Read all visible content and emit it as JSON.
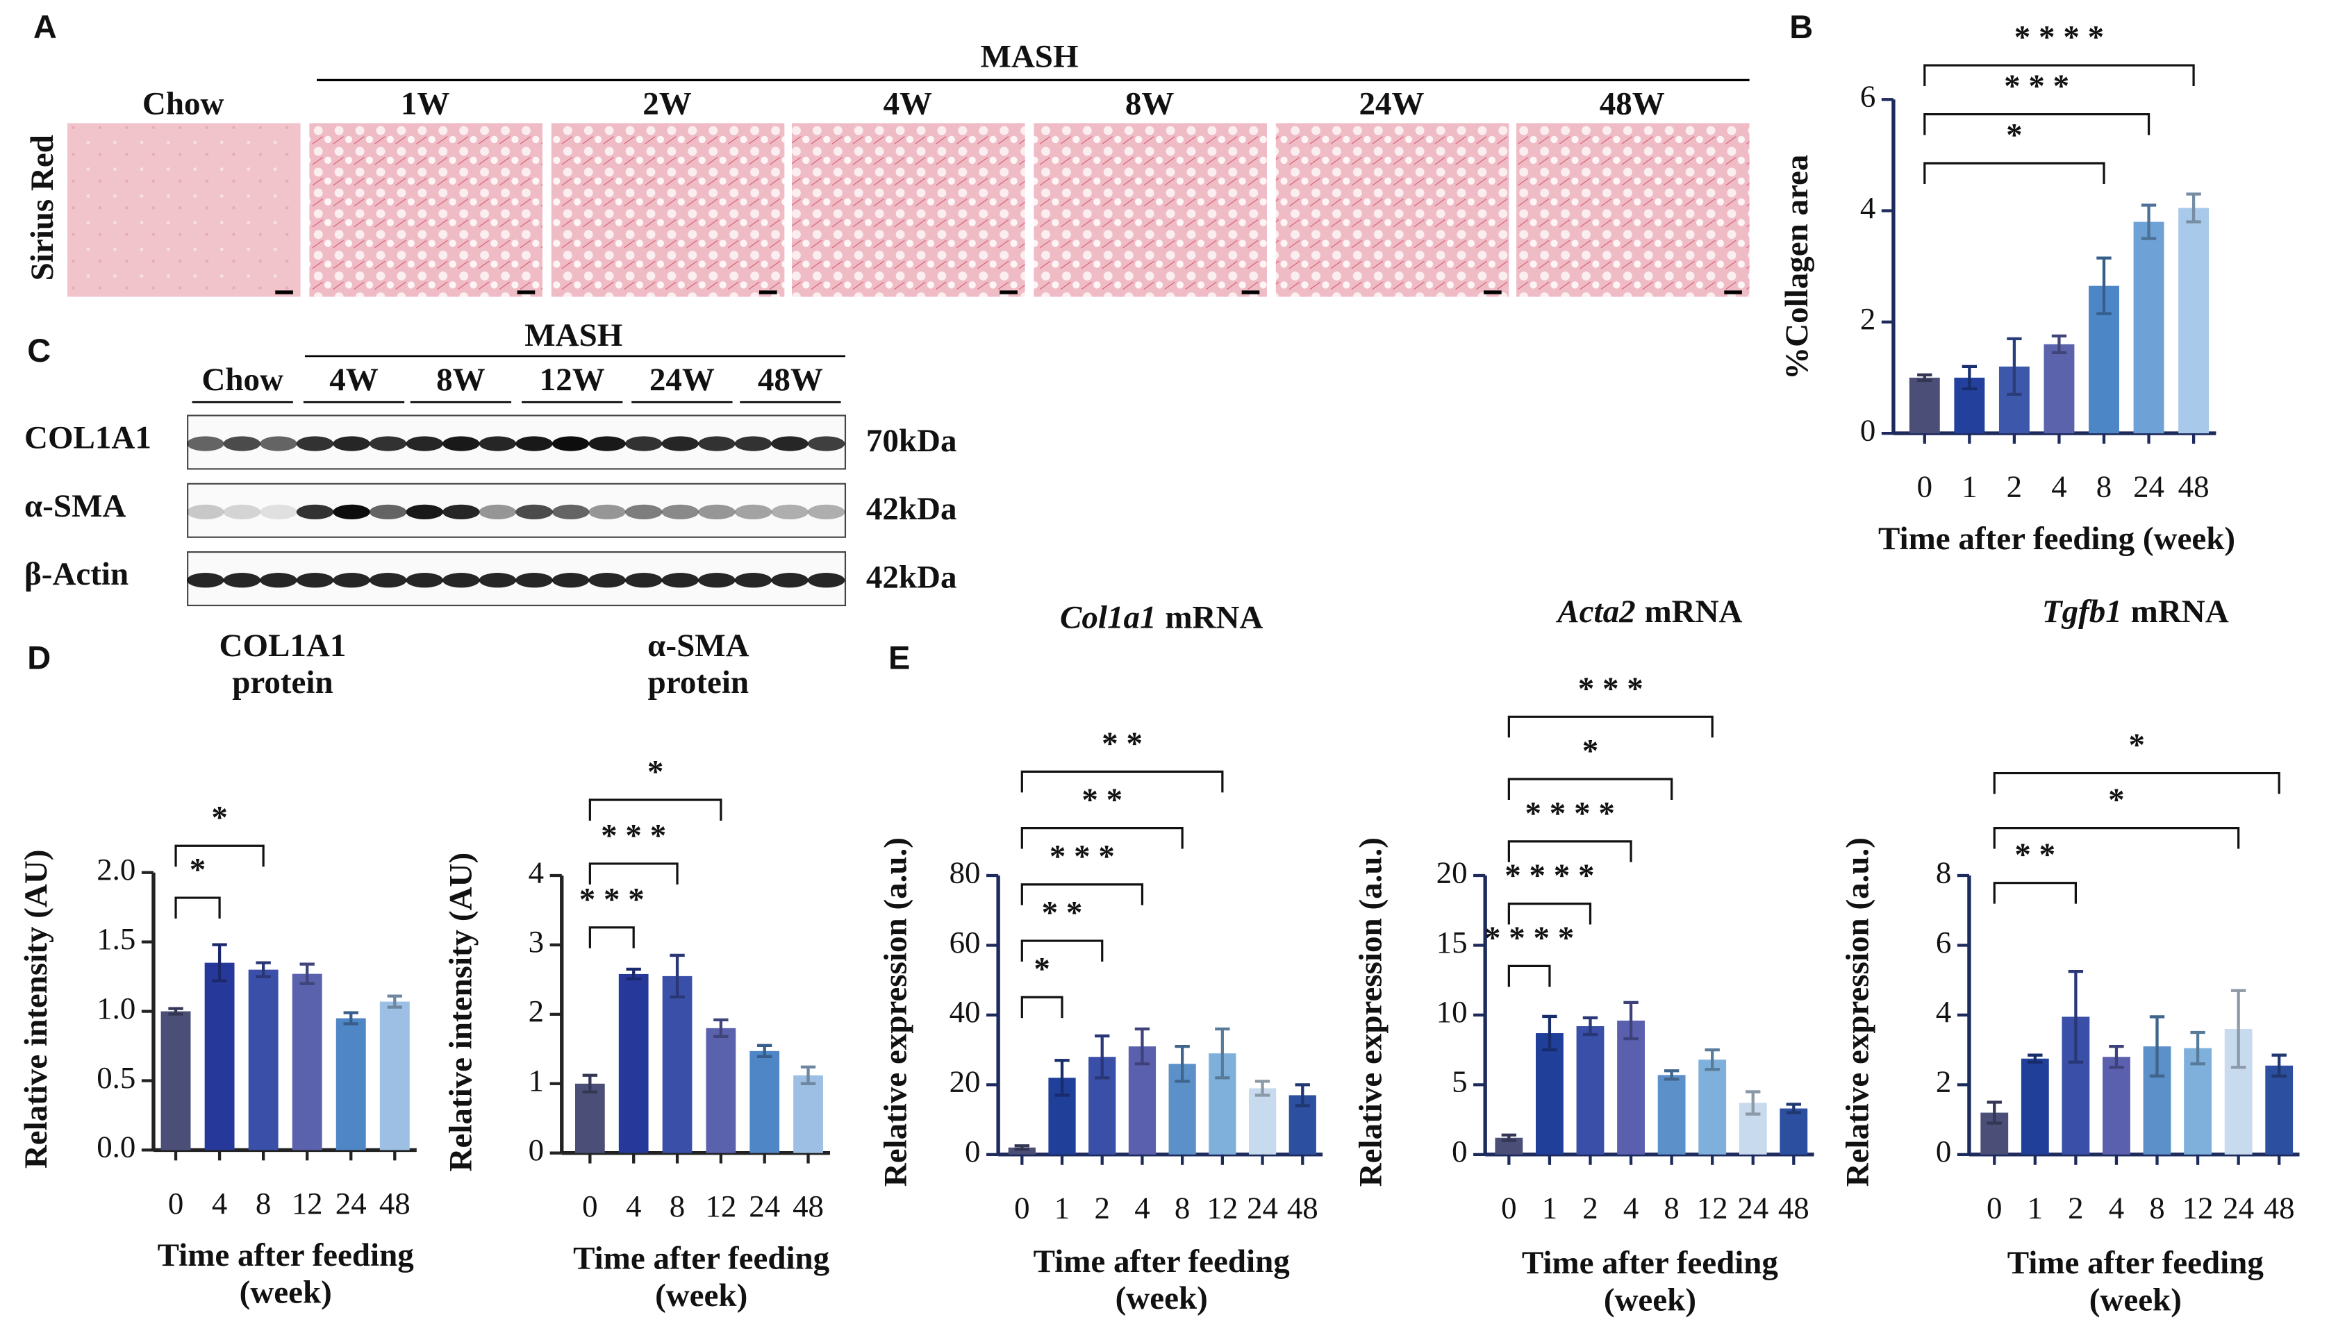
{
  "panels": [
    "A",
    "B",
    "C",
    "D",
    "E"
  ],
  "histology": {
    "mash_label": "MASH",
    "row_label": "Sirius Red",
    "columns": [
      "Chow",
      "1W",
      "2W",
      "4W",
      "8W",
      "24W",
      "48W"
    ]
  },
  "blot": {
    "mash_label": "MASH",
    "groups": [
      "Chow",
      "4W",
      "8W",
      "12W",
      "24W",
      "48W"
    ],
    "rows": [
      {
        "name": "COL1A1",
        "size": "70kDa"
      },
      {
        "name": "α-SMA",
        "size": "42kDa"
      },
      {
        "name": "β-Actin",
        "size": "42kDa"
      }
    ]
  },
  "chart_data": [
    {
      "type": "bar",
      "y_label": "%Collagen area",
      "x_label": "Time after feeding (week)",
      "categories": [
        "0",
        "1",
        "2",
        "4",
        "8",
        "24",
        "48"
      ],
      "values": [
        1.0,
        1.0,
        1.2,
        1.6,
        2.65,
        3.8,
        4.05
      ],
      "errors": [
        0.05,
        0.2,
        0.5,
        0.15,
        0.5,
        0.3,
        0.25
      ],
      "colors": [
        "#4b4f78",
        "#23409c",
        "#3d57ab",
        "#5b63ad",
        "#4d86c6",
        "#6ea1d6",
        "#a9c9ea"
      ],
      "ylim": [
        0,
        6
      ],
      "yticks": [
        0,
        2,
        4,
        6
      ],
      "comparisons": [
        {
          "vs": "8",
          "label": "*"
        },
        {
          "vs": "24",
          "label": "* * *"
        },
        {
          "vs": "48",
          "label": "* * * *"
        }
      ]
    },
    {
      "type": "bar",
      "title": [
        "COL1A1",
        "protein"
      ],
      "y_label": "Relative intensity (AU)",
      "x_label": [
        "Time after feeding",
        "(week)"
      ],
      "categories": [
        "0",
        "4",
        "8",
        "12",
        "24",
        "48"
      ],
      "values": [
        1.0,
        1.35,
        1.3,
        1.27,
        0.95,
        1.07
      ],
      "errors": [
        0.02,
        0.13,
        0.05,
        0.07,
        0.04,
        0.04
      ],
      "colors": [
        "#4b4f78",
        "#26399a",
        "#3a4fa8",
        "#5a62ad",
        "#4f86c6",
        "#9dbfe3"
      ],
      "ylim": [
        0,
        2
      ],
      "yticks": [
        {
          "value": 0,
          "label": "0.0"
        },
        0.5,
        {
          "value": 1,
          "label": "1.0"
        },
        1.5,
        {
          "value": 2,
          "label": "2.0"
        }
      ],
      "comparisons": [
        {
          "vs": "4",
          "label": "*"
        },
        {
          "vs": "8",
          "label": "*"
        }
      ]
    },
    {
      "type": "bar",
      "title": [
        "α-SMA",
        "protein"
      ],
      "y_label": "Relative intensity (AU)",
      "x_label": [
        "Time after feeding",
        "(week)"
      ],
      "categories": [
        "0",
        "4",
        "8",
        "12",
        "24",
        "48"
      ],
      "values": [
        1.0,
        2.58,
        2.55,
        1.8,
        1.47,
        1.12
      ],
      "errors": [
        0.12,
        0.07,
        0.3,
        0.12,
        0.08,
        0.12
      ],
      "colors": [
        "#4b4f78",
        "#26399a",
        "#3a4fa8",
        "#5a62ad",
        "#4f86c6",
        "#9dbfe3"
      ],
      "ylim": [
        0,
        4
      ],
      "yticks": [
        0,
        1,
        2,
        3,
        4
      ],
      "comparisons": [
        {
          "vs": "4",
          "label": "* * *"
        },
        {
          "vs": "8",
          "label": "* * *"
        },
        {
          "vs": "12",
          "label": "*"
        }
      ]
    },
    {
      "type": "bar",
      "title_italic": "Col1a1",
      "title": "mRNA",
      "y_label": "Relative expression (a.u.)",
      "x_label": [
        "Time after feeding",
        "(week)"
      ],
      "categories": [
        "0",
        "1",
        "2",
        "4",
        "8",
        "12",
        "24",
        "48"
      ],
      "values": [
        2,
        22,
        28,
        31,
        26,
        29,
        19,
        17
      ],
      "errors": [
        0.5,
        5,
        6,
        5,
        5,
        7,
        2,
        3
      ],
      "colors": [
        "#4b4f78",
        "#1f3f99",
        "#3a4fa8",
        "#5a5fae",
        "#5b90c9",
        "#7fb0dc",
        "#c8daee",
        "#2d4fa0"
      ],
      "ylim": [
        0,
        80
      ],
      "yticks": [
        0,
        20,
        40,
        60,
        80
      ],
      "comparisons": [
        {
          "vs": "1",
          "label": "*"
        },
        {
          "vs": "2",
          "label": "* *"
        },
        {
          "vs": "4",
          "label": "* * *"
        },
        {
          "vs": "8",
          "label": "* *"
        },
        {
          "vs": "12",
          "label": "* *"
        }
      ]
    },
    {
      "type": "bar",
      "title_italic": "Acta2",
      "title": "mRNA",
      "y_label": "Relative expression (a.u.)",
      "x_label": [
        "Time after feeding",
        "(week)"
      ],
      "categories": [
        "0",
        "1",
        "2",
        "4",
        "8",
        "12",
        "24",
        "48"
      ],
      "values": [
        1.2,
        8.7,
        9.2,
        9.6,
        5.7,
        6.8,
        3.7,
        3.3
      ],
      "errors": [
        0.2,
        1.2,
        0.6,
        1.3,
        0.3,
        0.7,
        0.8,
        0.3
      ],
      "colors": [
        "#4b4f78",
        "#1f3f99",
        "#3a4fa8",
        "#5a5fae",
        "#5b90c9",
        "#7fb0dc",
        "#c8daee",
        "#2d4fa0"
      ],
      "ylim": [
        0,
        20
      ],
      "yticks": [
        0,
        5,
        10,
        15,
        20
      ],
      "comparisons": [
        {
          "vs": "1",
          "label": "* * * *"
        },
        {
          "vs": "2",
          "label": "* * * *"
        },
        {
          "vs": "4",
          "label": "* * * *"
        },
        {
          "vs": "8",
          "label": "*"
        },
        {
          "vs": "12",
          "label": "* * *"
        }
      ]
    },
    {
      "type": "bar",
      "title_italic": "Tgfb1",
      "title": "mRNA",
      "y_label": "Relative expression (a.u.)",
      "x_label": [
        "Time after feeding",
        "(week)"
      ],
      "categories": [
        "0",
        "1",
        "2",
        "4",
        "8",
        "12",
        "24",
        "48"
      ],
      "values": [
        1.2,
        2.75,
        3.95,
        2.8,
        3.1,
        3.05,
        3.6,
        2.55
      ],
      "errors": [
        0.3,
        0.1,
        1.3,
        0.3,
        0.85,
        0.45,
        1.1,
        0.3
      ],
      "colors": [
        "#4b4f78",
        "#1f3f99",
        "#3a4fa8",
        "#5a5fae",
        "#5b90c9",
        "#7fb0dc",
        "#c8daee",
        "#2d4fa0"
      ],
      "ylim": [
        0,
        8
      ],
      "yticks": [
        0,
        2,
        4,
        6,
        8
      ],
      "comparisons": [
        {
          "vs": "2",
          "label": "* *"
        },
        {
          "vs": "24",
          "label": "*"
        },
        {
          "vs": "48",
          "label": "*"
        }
      ]
    }
  ]
}
